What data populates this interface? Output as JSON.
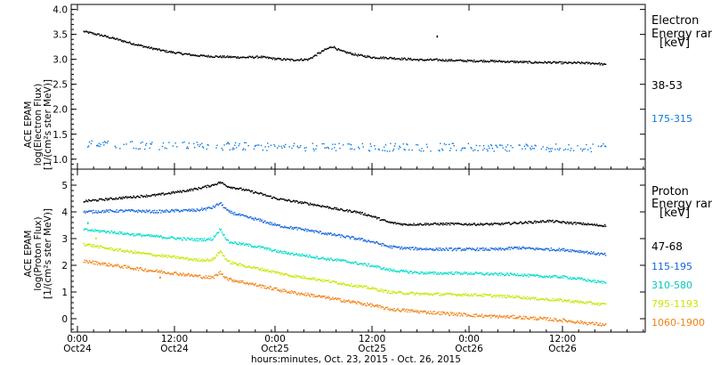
{
  "x_axis": {
    "ticks": [
      {
        "line1": "0:00",
        "line2": "Oct24"
      },
      {
        "line1": "12:00",
        "line2": "Oct24"
      },
      {
        "line1": "0:00",
        "line2": "Oct25"
      },
      {
        "line1": "12:00",
        "line2": "Oct25"
      },
      {
        "line1": "0:00",
        "line2": "Oct26"
      },
      {
        "line1": "12:00",
        "line2": "Oct26"
      }
    ],
    "title": "hours:minutes, Oct. 23, 2015 - Oct. 26, 2015"
  },
  "chart_data": [
    {
      "type": "scatter",
      "ylabel_lines": [
        "ACE EPAM",
        "log(Electron Flux)",
        "[1/(cm²s ster MeV)]"
      ],
      "ylim": [
        0.8,
        4.1
      ],
      "yticks": [
        "1.0",
        "1.5",
        "2.0",
        "2.5",
        "3.0",
        "3.5",
        "4.0"
      ],
      "legend_title_lines": [
        "Electron",
        "Energy ran",
        "[keV]"
      ],
      "x_unit": "hours since Oct 24 00:00",
      "xlim": [
        -1.5,
        70
      ],
      "series": [
        {
          "name": "38-53",
          "color": "#000000",
          "x": [
            0,
            2,
            4,
            6,
            8,
            10,
            12,
            14,
            16,
            18,
            20,
            22,
            24,
            26,
            28,
            30,
            31,
            32,
            34,
            36,
            38,
            40,
            42,
            44,
            46,
            48,
            50,
            52,
            54,
            56,
            58,
            60,
            62,
            64,
            65
          ],
          "y": [
            3.57,
            3.5,
            3.42,
            3.33,
            3.25,
            3.18,
            3.13,
            3.09,
            3.07,
            3.06,
            3.05,
            3.06,
            3.02,
            3.0,
            3.01,
            3.2,
            3.27,
            3.18,
            3.1,
            3.05,
            3.04,
            3.02,
            3.0,
            3.0,
            2.99,
            2.98,
            2.98,
            2.97,
            2.96,
            2.95,
            2.95,
            2.94,
            2.94,
            2.93,
            2.9
          ],
          "noise": 0.02,
          "outliers": [
            {
              "x": 44,
              "y": 3.48
            }
          ]
        },
        {
          "name": "175-315",
          "color": "#0a78dc",
          "x": [
            0,
            10,
            20,
            30,
            40,
            50,
            60,
            65
          ],
          "y": [
            1.32,
            1.28,
            1.27,
            1.25,
            1.25,
            1.25,
            1.24,
            1.24
          ],
          "noise": 0.08,
          "outliers": []
        }
      ]
    },
    {
      "type": "scatter",
      "ylabel_lines": [
        "ACE EPAM",
        "log(Proton Flux)",
        "[1/(cm²s ster MeV)]"
      ],
      "ylim": [
        -0.5,
        5.6
      ],
      "yticks": [
        "0",
        "1",
        "2",
        "3",
        "4",
        "5"
      ],
      "legend_title_lines": [
        "Proton",
        "Energy ran",
        "[keV]"
      ],
      "x_unit": "hours since Oct 24 00:00",
      "xlim": [
        -1.5,
        70
      ],
      "series": [
        {
          "name": "47-68",
          "color": "#000000",
          "x": [
            0,
            3,
            6,
            9,
            12,
            14,
            16,
            17,
            18,
            20,
            22,
            24,
            26,
            28,
            30,
            32,
            34,
            36,
            38,
            40,
            42,
            44,
            46,
            48,
            50,
            52,
            54,
            56,
            58,
            60,
            62,
            64,
            65
          ],
          "y": [
            4.42,
            4.5,
            4.58,
            4.65,
            4.78,
            4.88,
            5.02,
            5.13,
            4.97,
            4.85,
            4.7,
            4.52,
            4.42,
            4.33,
            4.22,
            4.1,
            4.02,
            3.85,
            3.63,
            3.55,
            3.56,
            3.57,
            3.57,
            3.56,
            3.56,
            3.57,
            3.61,
            3.64,
            3.68,
            3.62,
            3.58,
            3.52,
            3.51
          ],
          "noise": 0.04,
          "outliers": []
        },
        {
          "name": "115-195",
          "color": "#1464dc",
          "x": [
            0,
            3,
            6,
            9,
            12,
            14,
            16,
            17,
            18,
            20,
            22,
            24,
            26,
            28,
            30,
            32,
            34,
            36,
            38,
            40,
            42,
            44,
            46,
            48,
            50,
            52,
            54,
            56,
            58,
            60,
            62,
            64,
            65
          ],
          "y": [
            4.02,
            4.05,
            4.06,
            4.03,
            4.07,
            4.08,
            4.18,
            4.35,
            4.03,
            3.85,
            3.7,
            3.52,
            3.42,
            3.33,
            3.22,
            3.12,
            3.02,
            2.9,
            2.72,
            2.66,
            2.64,
            2.62,
            2.62,
            2.62,
            2.62,
            2.62,
            2.68,
            2.64,
            2.62,
            2.6,
            2.54,
            2.45,
            2.42
          ],
          "noise": 0.05,
          "outliers": []
        },
        {
          "name": "310-580",
          "color": "#00dcc8",
          "x": [
            0,
            3,
            6,
            9,
            12,
            14,
            16,
            17,
            18,
            20,
            22,
            24,
            26,
            28,
            30,
            32,
            34,
            36,
            38,
            40,
            42,
            44,
            46,
            48,
            50,
            52,
            54,
            56,
            58,
            60,
            62,
            64,
            65
          ],
          "y": [
            3.35,
            3.28,
            3.18,
            3.1,
            3.02,
            2.98,
            3.0,
            3.38,
            2.9,
            2.8,
            2.7,
            2.55,
            2.45,
            2.37,
            2.27,
            2.2,
            2.1,
            2.0,
            1.85,
            1.78,
            1.74,
            1.72,
            1.73,
            1.72,
            1.7,
            1.68,
            1.68,
            1.62,
            1.6,
            1.58,
            1.5,
            1.4,
            1.38
          ],
          "noise": 0.05,
          "outliers": [
            {
              "x": 0.5,
              "y": 3.62
            }
          ]
        },
        {
          "name": "795-1193",
          "color": "#c8e600",
          "x": [
            0,
            3,
            6,
            9,
            12,
            14,
            16,
            17,
            18,
            20,
            22,
            24,
            26,
            28,
            30,
            32,
            34,
            36,
            38,
            40,
            42,
            44,
            46,
            48,
            50,
            52,
            54,
            56,
            58,
            60,
            62,
            64,
            65
          ],
          "y": [
            2.82,
            2.65,
            2.52,
            2.4,
            2.3,
            2.22,
            2.22,
            2.55,
            2.15,
            2.0,
            1.88,
            1.75,
            1.62,
            1.55,
            1.45,
            1.35,
            1.25,
            1.15,
            1.02,
            0.98,
            0.95,
            0.94,
            0.93,
            0.92,
            0.9,
            0.86,
            0.84,
            0.78,
            0.74,
            0.7,
            0.64,
            0.58,
            0.55
          ],
          "noise": 0.05,
          "outliers": [
            {
              "x": 1.5,
              "y": 3.05
            }
          ]
        },
        {
          "name": "1060-1900",
          "color": "#f08214",
          "x": [
            0,
            3,
            6,
            9,
            12,
            14,
            16,
            17,
            18,
            20,
            22,
            24,
            26,
            28,
            30,
            32,
            34,
            36,
            38,
            40,
            42,
            44,
            46,
            48,
            50,
            52,
            54,
            56,
            58,
            60,
            62,
            64,
            65
          ],
          "y": [
            2.18,
            2.05,
            1.92,
            1.8,
            1.7,
            1.62,
            1.55,
            1.75,
            1.5,
            1.38,
            1.25,
            1.12,
            1.0,
            0.92,
            0.82,
            0.72,
            0.62,
            0.52,
            0.38,
            0.33,
            0.28,
            0.24,
            0.2,
            0.16,
            0.12,
            0.1,
            0.08,
            0.04,
            0.0,
            -0.05,
            -0.12,
            -0.18,
            -0.22
          ],
          "noise": 0.06,
          "outliers": [
            {
              "x": 9.5,
              "y": 1.58
            }
          ]
        }
      ]
    }
  ]
}
